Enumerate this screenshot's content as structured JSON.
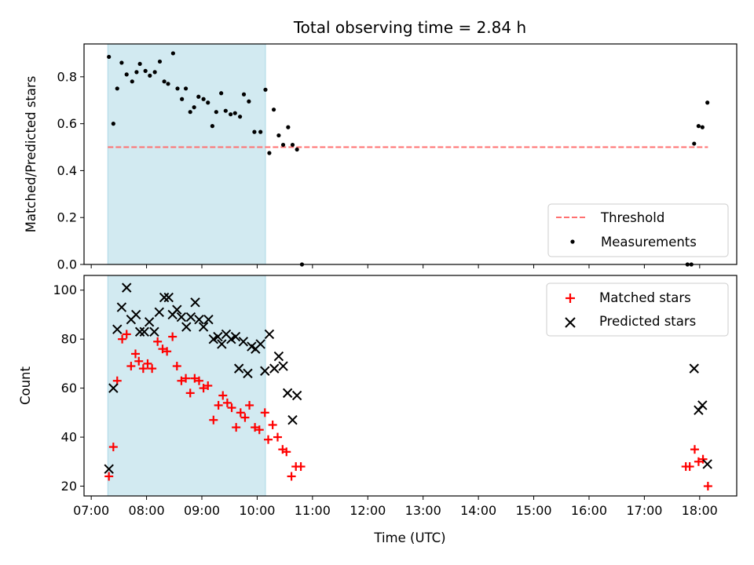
{
  "chart_data": {
    "type": "scatter",
    "title": "Total observing time = 2.84 h",
    "xlabel": "Time (UTC)",
    "x_unit": "hours UTC",
    "xlim": [
      6.87,
      18.67
    ],
    "xticks": [
      7,
      8,
      9,
      10,
      11,
      12,
      13,
      14,
      15,
      16,
      17,
      18
    ],
    "xtick_labels": [
      "07:00",
      "08:00",
      "09:00",
      "10:00",
      "11:00",
      "12:00",
      "13:00",
      "14:00",
      "15:00",
      "16:00",
      "17:00",
      "18:00"
    ],
    "shaded_interval": {
      "x": [
        7.3,
        10.15
      ],
      "color": "#add8e6"
    },
    "panels": [
      {
        "id": "ratio",
        "ylabel": "Matched/Predicted stars",
        "ylim": [
          0,
          0.94
        ],
        "yticks": [
          0.0,
          0.2,
          0.4,
          0.6,
          0.8
        ],
        "ytick_labels": [
          "0.0",
          "0.2",
          "0.4",
          "0.6",
          "0.8"
        ],
        "legend_position": "lower-right",
        "series": [
          {
            "name": "Threshold",
            "kind": "line",
            "style": "dashed",
            "color": "#ff7070",
            "x": [
              7.3,
              18.15
            ],
            "y": [
              0.5,
              0.5
            ]
          },
          {
            "name": "Measurements",
            "kind": "scatter",
            "marker": "dot",
            "color": "#000000",
            "points": [
              [
                7.32,
                0.885
              ],
              [
                7.4,
                0.6
              ],
              [
                7.47,
                0.75
              ],
              [
                7.55,
                0.86
              ],
              [
                7.64,
                0.81
              ],
              [
                7.74,
                0.78
              ],
              [
                7.82,
                0.82
              ],
              [
                7.88,
                0.855
              ],
              [
                7.98,
                0.825
              ],
              [
                8.06,
                0.805
              ],
              [
                8.15,
                0.82
              ],
              [
                8.24,
                0.865
              ],
              [
                8.32,
                0.78
              ],
              [
                8.39,
                0.77
              ],
              [
                8.48,
                0.9
              ],
              [
                8.56,
                0.75
              ],
              [
                8.64,
                0.705
              ],
              [
                8.71,
                0.75
              ],
              [
                8.79,
                0.65
              ],
              [
                8.86,
                0.67
              ],
              [
                8.94,
                0.715
              ],
              [
                9.03,
                0.705
              ],
              [
                9.11,
                0.69
              ],
              [
                9.19,
                0.59
              ],
              [
                9.26,
                0.65
              ],
              [
                9.35,
                0.73
              ],
              [
                9.43,
                0.655
              ],
              [
                9.52,
                0.64
              ],
              [
                9.6,
                0.645
              ],
              [
                9.69,
                0.63
              ],
              [
                9.76,
                0.725
              ],
              [
                9.85,
                0.695
              ],
              [
                9.95,
                0.565
              ],
              [
                10.06,
                0.565
              ],
              [
                10.15,
                0.745
              ],
              [
                10.22,
                0.475
              ],
              [
                10.3,
                0.66
              ],
              [
                10.39,
                0.55
              ],
              [
                10.47,
                0.51
              ],
              [
                10.56,
                0.585
              ],
              [
                10.64,
                0.51
              ],
              [
                10.72,
                0.49
              ],
              [
                10.81,
                0.0
              ],
              [
                17.78,
                0.0
              ],
              [
                17.85,
                0.0
              ],
              [
                17.9,
                0.515
              ],
              [
                17.98,
                0.59
              ],
              [
                18.05,
                0.585
              ],
              [
                18.14,
                0.69
              ]
            ]
          }
        ]
      },
      {
        "id": "count",
        "ylabel": "Count",
        "ylim": [
          16,
          106
        ],
        "yticks": [
          20,
          40,
          60,
          80,
          100
        ],
        "ytick_labels": [
          "20",
          "40",
          "60",
          "80",
          "100"
        ],
        "legend_position": "upper-right",
        "series": [
          {
            "name": "Matched stars",
            "kind": "scatter",
            "marker": "plus",
            "color": "#ff0000",
            "points": [
              [
                7.32,
                24
              ],
              [
                7.4,
                36
              ],
              [
                7.47,
                63
              ],
              [
                7.56,
                80
              ],
              [
                7.64,
                82
              ],
              [
                7.72,
                69
              ],
              [
                7.8,
                74
              ],
              [
                7.86,
                71
              ],
              [
                7.94,
                68
              ],
              [
                8.02,
                70
              ],
              [
                8.1,
                68
              ],
              [
                8.2,
                79
              ],
              [
                8.29,
                76
              ],
              [
                8.37,
                75
              ],
              [
                8.47,
                81
              ],
              [
                8.55,
                69
              ],
              [
                8.63,
                63
              ],
              [
                8.71,
                64
              ],
              [
                8.79,
                58
              ],
              [
                8.87,
                64
              ],
              [
                8.95,
                63
              ],
              [
                9.03,
                60
              ],
              [
                9.11,
                61
              ],
              [
                9.21,
                47
              ],
              [
                9.3,
                53
              ],
              [
                9.38,
                57
              ],
              [
                9.46,
                54
              ],
              [
                9.54,
                52
              ],
              [
                9.62,
                44
              ],
              [
                9.7,
                50
              ],
              [
                9.78,
                48
              ],
              [
                9.86,
                53
              ],
              [
                9.96,
                44
              ],
              [
                10.04,
                43
              ],
              [
                10.14,
                50
              ],
              [
                10.2,
                39
              ],
              [
                10.28,
                45
              ],
              [
                10.37,
                40
              ],
              [
                10.46,
                35
              ],
              [
                10.53,
                34
              ],
              [
                10.62,
                24
              ],
              [
                10.7,
                28
              ],
              [
                10.79,
                28
              ],
              [
                17.75,
                28
              ],
              [
                17.82,
                28
              ],
              [
                17.91,
                35
              ],
              [
                17.98,
                30
              ],
              [
                18.06,
                31
              ],
              [
                18.15,
                20
              ]
            ]
          },
          {
            "name": "Predicted stars",
            "kind": "scatter",
            "marker": "x",
            "color": "#000000",
            "points": [
              [
                7.32,
                27
              ],
              [
                7.4,
                60
              ],
              [
                7.47,
                84
              ],
              [
                7.55,
                93
              ],
              [
                7.64,
                101
              ],
              [
                7.72,
                88
              ],
              [
                7.81,
                90
              ],
              [
                7.88,
                83
              ],
              [
                7.96,
                83
              ],
              [
                8.05,
                87
              ],
              [
                8.14,
                83
              ],
              [
                8.23,
                91
              ],
              [
                8.32,
                97
              ],
              [
                8.4,
                97
              ],
              [
                8.47,
                90
              ],
              [
                8.55,
                92
              ],
              [
                8.63,
                89
              ],
              [
                8.72,
                85
              ],
              [
                8.8,
                89
              ],
              [
                8.88,
                95
              ],
              [
                8.95,
                88
              ],
              [
                9.03,
                85
              ],
              [
                9.12,
                88
              ],
              [
                9.21,
                80
              ],
              [
                9.29,
                81
              ],
              [
                9.36,
                78
              ],
              [
                9.44,
                82
              ],
              [
                9.53,
                80
              ],
              [
                9.61,
                81
              ],
              [
                9.67,
                68
              ],
              [
                9.75,
                79
              ],
              [
                9.83,
                66
              ],
              [
                9.9,
                77
              ],
              [
                9.97,
                76
              ],
              [
                10.06,
                78
              ],
              [
                10.14,
                67
              ],
              [
                10.22,
                82
              ],
              [
                10.31,
                68
              ],
              [
                10.39,
                73
              ],
              [
                10.47,
                69
              ],
              [
                10.55,
                58
              ],
              [
                10.64,
                47
              ],
              [
                10.72,
                57
              ],
              [
                17.9,
                68
              ],
              [
                17.98,
                51
              ],
              [
                18.05,
                53
              ],
              [
                18.14,
                29
              ]
            ]
          }
        ]
      }
    ]
  }
}
